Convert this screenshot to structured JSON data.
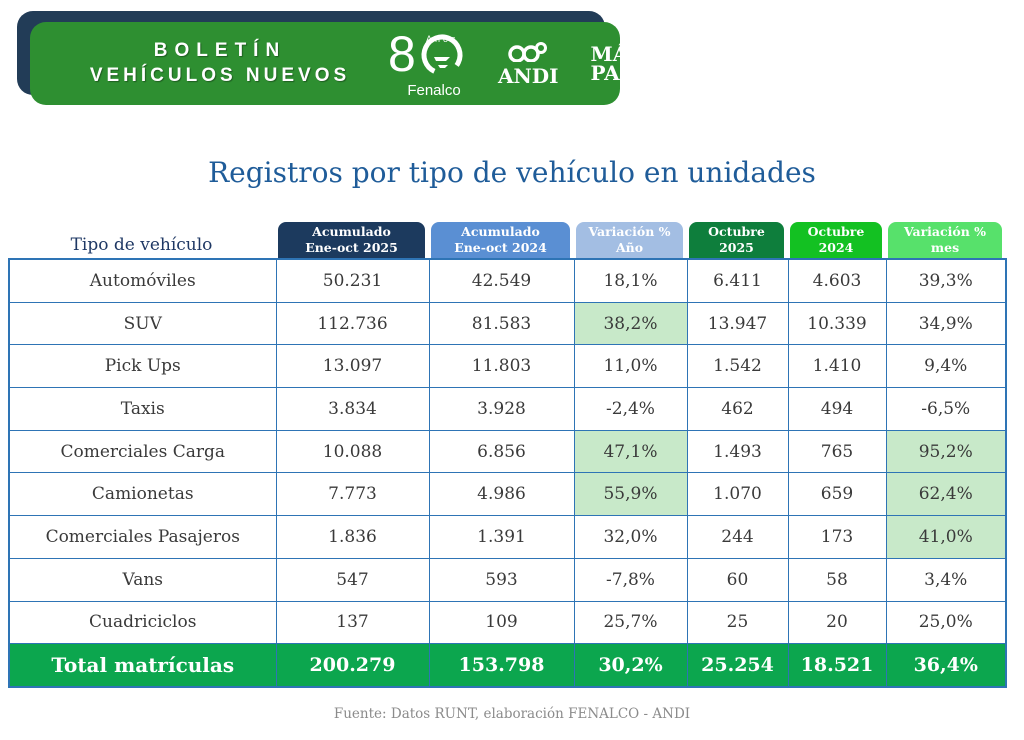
{
  "banner": {
    "title_line1": "BOLETÍN",
    "title_line2": "VEHÍCULOS NUEVOS",
    "fenalco": {
      "number": "8",
      "anos": "Años",
      "name": "Fenalco"
    },
    "andi_label": "ANDI",
    "mas_pais_line1": "MÁS",
    "mas_pais_line2": "PAÍS"
  },
  "page_title": "Registros por tipo de vehículo en unidades",
  "table": {
    "row_header_label": "Tipo de vehículo",
    "columns": [
      {
        "line1": "Acumulado",
        "line2": "Ene-oct 2025",
        "color": "#1C3A5E"
      },
      {
        "line1": "Acumulado",
        "line2": "Ene-oct 2024",
        "color": "#5A8FD3"
      },
      {
        "line1": "Variación %",
        "line2": "Año",
        "color": "#A3BEE3"
      },
      {
        "line1": "Octubre",
        "line2": "2025",
        "color": "#0E7E3C"
      },
      {
        "line1": "Octubre",
        "line2": "2024",
        "color": "#13C122"
      },
      {
        "line1": "Variación %",
        "line2": "mes",
        "color": "#57E16B"
      }
    ],
    "rows": [
      {
        "tipo": "Automóviles",
        "acum_2025": "50.231",
        "acum_2024": "42.549",
        "var_ano": "18,1%",
        "oct_2025": "6.411",
        "oct_2024": "4.603",
        "var_mes": "39,3%",
        "highlight": [],
        "bottom_align": []
      },
      {
        "tipo": "SUV",
        "acum_2025": "112.736",
        "acum_2024": "81.583",
        "var_ano": "38,2%",
        "oct_2025": "13.947",
        "oct_2024": "10.339",
        "var_mes": "34,9%",
        "highlight": [
          "var_ano"
        ],
        "bottom_align": []
      },
      {
        "tipo": "Pick Ups",
        "acum_2025": "13.097",
        "acum_2024": "11.803",
        "var_ano": "11,0%",
        "oct_2025": "1.542",
        "oct_2024": "1.410",
        "var_mes": "9,4%",
        "highlight": [],
        "bottom_align": []
      },
      {
        "tipo": "Taxis",
        "acum_2025": "3.834",
        "acum_2024": "3.928",
        "var_ano": "-2,4%",
        "oct_2025": "462",
        "oct_2024": "494",
        "var_mes": "-6,5%",
        "highlight": [],
        "bottom_align": []
      },
      {
        "tipo": "Comerciales Carga",
        "acum_2025": "10.088",
        "acum_2024": "6.856",
        "var_ano": "47,1%",
        "oct_2025": "1.493",
        "oct_2024": "765",
        "var_mes": "95,2%",
        "highlight": [
          "var_ano",
          "var_mes"
        ],
        "bottom_align": []
      },
      {
        "tipo": "Camionetas",
        "acum_2025": "7.773",
        "acum_2024": "4.986",
        "var_ano": "55,9%",
        "oct_2025": "1.070",
        "oct_2024": "659",
        "var_mes": "62,4%",
        "highlight": [
          "var_ano",
          "var_mes"
        ],
        "bottom_align": []
      },
      {
        "tipo": "Comerciales Pasajeros",
        "acum_2025": "1.836",
        "acum_2024": "1.391",
        "var_ano": "32,0%",
        "oct_2025": "244",
        "oct_2024": "173",
        "var_mes": "41,0%",
        "highlight": [
          "var_mes"
        ],
        "bottom_align": []
      },
      {
        "tipo": "Vans",
        "acum_2025": "547",
        "acum_2024": "593",
        "var_ano": "-7,8%",
        "oct_2025": "60",
        "oct_2024": "58",
        "var_mes": "3,4%",
        "highlight": [],
        "bottom_align": []
      },
      {
        "tipo": "Cuadriciclos",
        "acum_2025": "137",
        "acum_2024": "109",
        "var_ano": "25,7%",
        "oct_2025": "25",
        "oct_2024": "20",
        "var_mes": "25,0%",
        "highlight": [],
        "bottom_align": [
          "var_mes"
        ]
      }
    ],
    "total": {
      "label": "Total matrículas",
      "acum_2025": "200.279",
      "acum_2024": "153.798",
      "var_ano": "30,2%",
      "oct_2025": "25.254",
      "oct_2024": "18.521",
      "var_mes": "36,4%"
    }
  },
  "footer_source": "Fuente: Datos RUNT, elaboración FENALCO - ANDI",
  "colors": {
    "banner_green": "#2E8F31",
    "banner_shadow_navy": "#223C57",
    "table_border_blue": "#2E74B5",
    "title_blue": "#1F5C99",
    "row_header_blue": "#1F3864",
    "highlight_cell_bg": "#C8E9C9",
    "highlight_cell_text": "#1E7B35",
    "total_row_green": "#0CA64E",
    "footer_gray": "#8B8B8B"
  }
}
